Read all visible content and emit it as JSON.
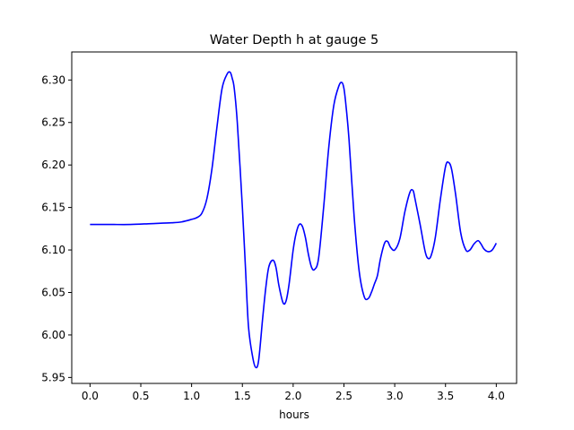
{
  "chart_data": {
    "type": "line",
    "title": "Water Depth h at gauge 5",
    "xlabel": "hours",
    "ylabel": "",
    "xlim": [
      -0.18,
      4.2
    ],
    "ylim": [
      5.943,
      6.333
    ],
    "xticks": [
      0.0,
      0.5,
      1.0,
      1.5,
      2.0,
      2.5,
      3.0,
      3.5,
      4.0
    ],
    "xtick_labels": [
      "0.0",
      "0.5",
      "1.0",
      "1.5",
      "2.0",
      "2.5",
      "3.0",
      "3.5",
      "4.0"
    ],
    "yticks": [
      5.95,
      6.0,
      6.05,
      6.1,
      6.15,
      6.2,
      6.25,
      6.3
    ],
    "ytick_labels": [
      "5.95",
      "6.00",
      "6.05",
      "6.10",
      "6.15",
      "6.20",
      "6.25",
      "6.30"
    ],
    "grid": false,
    "series": [
      {
        "color": "#0000ff",
        "x": [
          0.0,
          0.2,
          0.4,
          0.6,
          0.8,
          0.9,
          1.0,
          1.05,
          1.1,
          1.15,
          1.2,
          1.25,
          1.3,
          1.35,
          1.38,
          1.4,
          1.42,
          1.45,
          1.5,
          1.53,
          1.56,
          1.6,
          1.63,
          1.66,
          1.7,
          1.73,
          1.76,
          1.8,
          1.83,
          1.86,
          1.9,
          1.93,
          1.96,
          2.0,
          2.03,
          2.06,
          2.09,
          2.12,
          2.15,
          2.18,
          2.21,
          2.25,
          2.3,
          2.35,
          2.4,
          2.45,
          2.48,
          2.5,
          2.52,
          2.55,
          2.6,
          2.65,
          2.7,
          2.74,
          2.77,
          2.8,
          2.83,
          2.86,
          2.9,
          2.93,
          2.96,
          3.0,
          3.05,
          3.1,
          3.15,
          3.18,
          3.2,
          3.25,
          3.3,
          3.33,
          3.36,
          3.4,
          3.45,
          3.5,
          3.53,
          3.56,
          3.6,
          3.65,
          3.7,
          3.74,
          3.78,
          3.82,
          3.85,
          3.88,
          3.92,
          3.96,
          4.0
        ],
        "y": [
          6.13,
          6.13,
          6.13,
          6.131,
          6.132,
          6.133,
          6.136,
          6.138,
          6.143,
          6.16,
          6.195,
          6.245,
          6.29,
          6.307,
          6.309,
          6.302,
          6.29,
          6.25,
          6.15,
          6.08,
          6.01,
          5.975,
          5.962,
          5.97,
          6.02,
          6.055,
          6.08,
          6.088,
          6.08,
          6.058,
          6.038,
          6.04,
          6.06,
          6.1,
          6.12,
          6.13,
          6.128,
          6.115,
          6.095,
          6.08,
          6.077,
          6.09,
          6.15,
          6.22,
          6.27,
          6.293,
          6.297,
          6.29,
          6.27,
          6.23,
          6.14,
          6.075,
          6.045,
          6.043,
          6.05,
          6.06,
          6.07,
          6.09,
          6.108,
          6.11,
          6.103,
          6.1,
          6.113,
          6.145,
          6.168,
          6.17,
          6.16,
          6.13,
          6.098,
          6.09,
          6.094,
          6.115,
          6.16,
          6.198,
          6.203,
          6.195,
          6.165,
          6.12,
          6.1,
          6.1,
          6.107,
          6.111,
          6.107,
          6.101,
          6.098,
          6.1,
          6.108
        ]
      }
    ]
  }
}
